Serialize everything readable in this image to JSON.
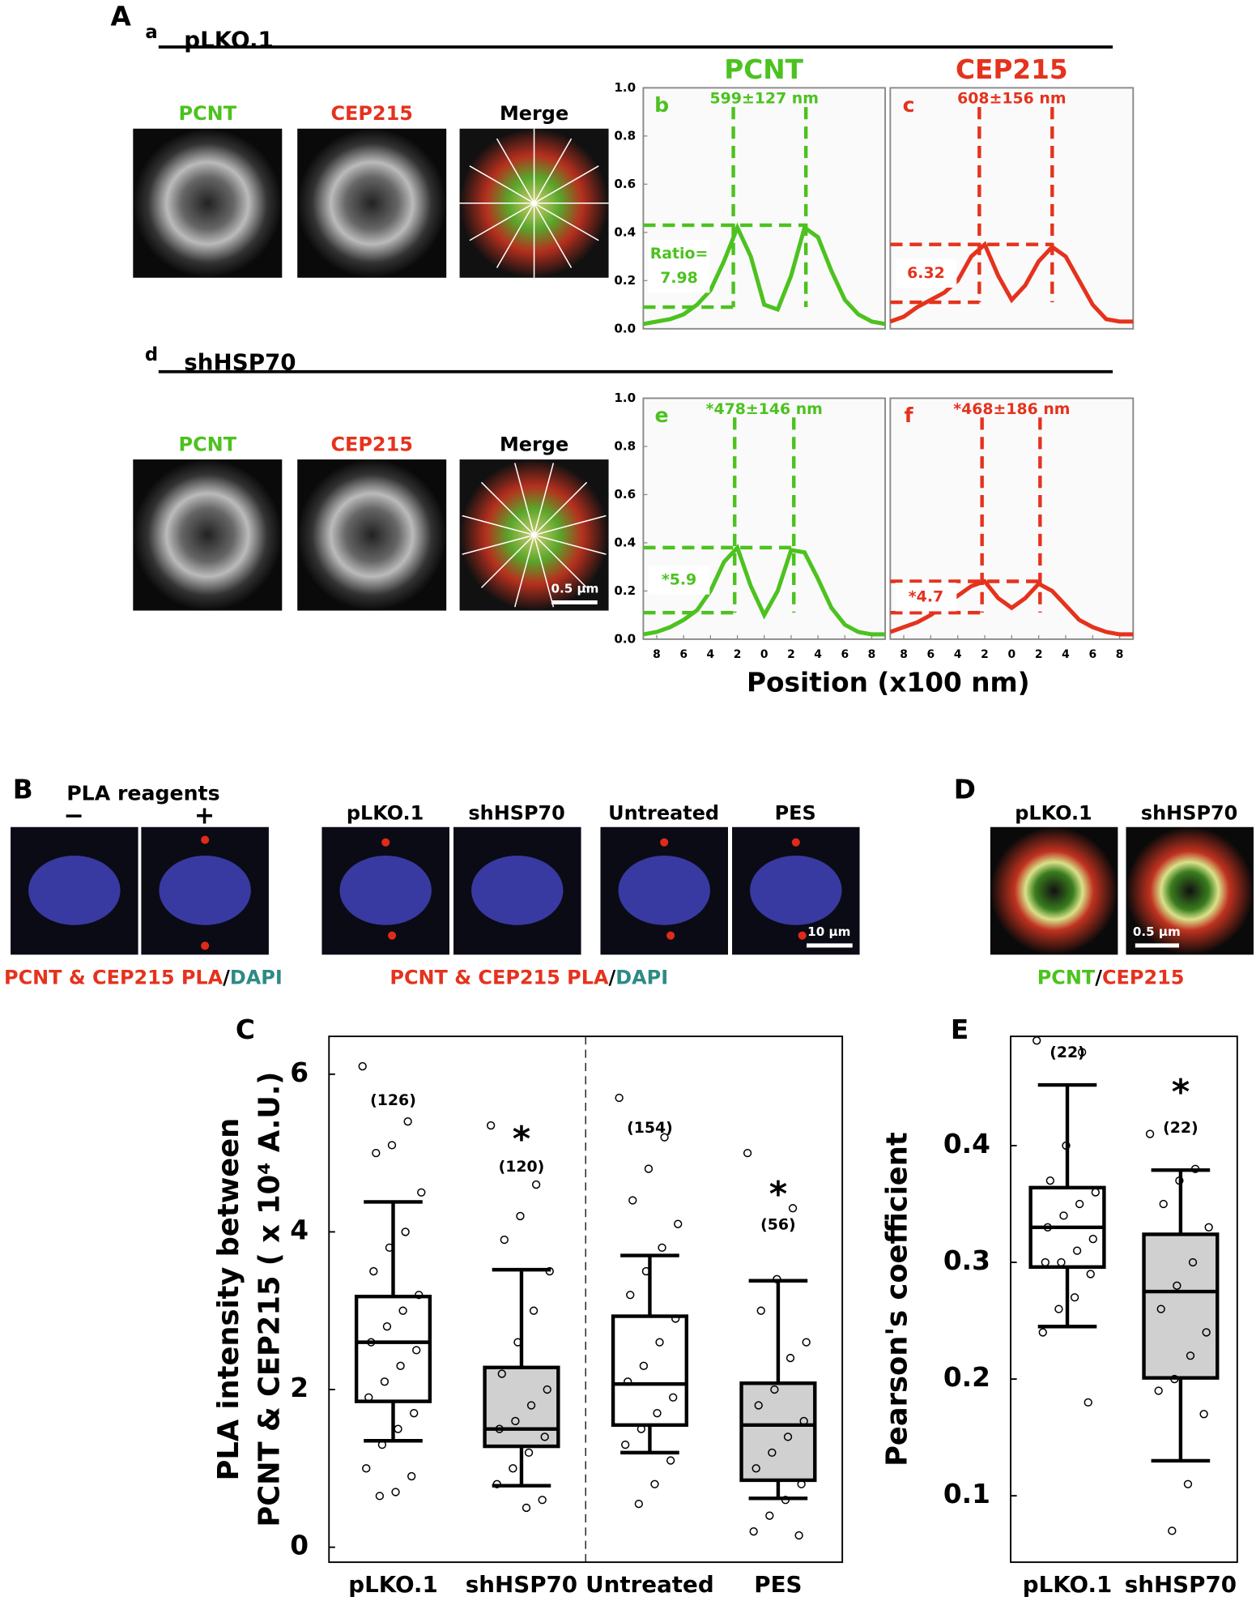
{
  "panel_a": {
    "letter": "A",
    "rows": [
      {
        "letter": "a",
        "title": "pLKO.1"
      },
      {
        "letter": "d",
        "title": "shHSP70"
      }
    ],
    "channels": [
      "PCNT",
      "CEP215",
      "Merge"
    ],
    "scale_bar": "0.5 μm",
    "column_titles": [
      "PCNT",
      "CEP215"
    ],
    "x_label": "Position (x100 nm)"
  },
  "panel_b": {
    "letter": "B",
    "reagents": "PLA reagents",
    "conditions": [
      "−",
      "+"
    ],
    "groups": [
      "pLKO.1",
      "shHSP70",
      "Untreated",
      "PES"
    ],
    "scale_bar": "10 μm",
    "caption": [
      "PCNT & CEP215 PLA",
      "/",
      "DAPI"
    ]
  },
  "panel_d": {
    "letter": "D",
    "groups": [
      "pLKO.1",
      "shHSP70"
    ],
    "scale_bar": "0.5 μm",
    "caption": [
      "PCNT",
      "/",
      "CEP215"
    ]
  },
  "chart_data": [
    {
      "type": "line",
      "letter": "b",
      "annotation": "599±127 nm",
      "ratio_text": [
        "Ratio=",
        "7.98"
      ],
      "color": "#4cc21f",
      "x": [
        -9,
        -8,
        -7,
        -6,
        -5,
        -4,
        -3,
        -2,
        -1,
        0,
        1,
        2,
        3,
        4,
        5,
        6,
        7,
        8,
        9
      ],
      "values": [
        0.02,
        0.03,
        0.04,
        0.06,
        0.1,
        0.16,
        0.28,
        0.42,
        0.3,
        0.1,
        0.08,
        0.22,
        0.42,
        0.38,
        0.24,
        0.12,
        0.06,
        0.03,
        0.02
      ],
      "hlines": [
        0.43,
        0.09
      ],
      "vlines": [
        -2.3,
        3.1
      ],
      "xlim": [
        -9,
        9
      ],
      "ylim": [
        0,
        1
      ],
      "yticks": [
        {
          "value": 0,
          "label": "0.0"
        },
        0.2,
        0.4,
        0.6,
        0.8,
        {
          "value": 1,
          "label": "1.0"
        }
      ]
    },
    {
      "type": "line",
      "letter": "c",
      "annotation": "608±156 nm",
      "ratio_text": [
        "6.32"
      ],
      "color": "#e5321d",
      "x": [
        -9,
        -8,
        -7,
        -6,
        -5,
        -4,
        -3,
        -2,
        -1,
        0,
        1,
        2,
        3,
        4,
        5,
        6,
        7,
        8,
        9
      ],
      "values": [
        0.03,
        0.05,
        0.09,
        0.12,
        0.15,
        0.2,
        0.3,
        0.35,
        0.22,
        0.12,
        0.18,
        0.28,
        0.34,
        0.3,
        0.2,
        0.1,
        0.04,
        0.03,
        0.03
      ],
      "hlines": [
        0.35,
        0.11
      ],
      "vlines": [
        -2.4,
        3.0
      ],
      "xlim": [
        -9,
        9
      ],
      "ylim": [
        0,
        1
      ]
    },
    {
      "type": "line",
      "letter": "e",
      "annotation": "*478±146 nm",
      "ratio_text": [
        "*5.9"
      ],
      "color": "#4cc21f",
      "x": [
        -9,
        -8,
        -7,
        -6,
        -5,
        -4,
        -3,
        -2,
        -1,
        0,
        1,
        2,
        3,
        4,
        5,
        6,
        7,
        8,
        9
      ],
      "values": [
        0.02,
        0.03,
        0.05,
        0.08,
        0.12,
        0.2,
        0.32,
        0.38,
        0.22,
        0.1,
        0.2,
        0.37,
        0.36,
        0.25,
        0.13,
        0.06,
        0.03,
        0.02,
        0.02
      ],
      "hlines": [
        0.38,
        0.11
      ],
      "vlines": [
        -2.2,
        2.2
      ],
      "xlim": [
        -9,
        9
      ],
      "ylim": [
        0,
        1
      ],
      "yticks": [
        {
          "value": 0,
          "label": "0.0"
        },
        0.2,
        0.4,
        0.6,
        0.8,
        {
          "value": 1,
          "label": "1.0"
        }
      ],
      "xticks": [
        {
          "value": -8,
          "label": "8"
        },
        {
          "value": -6,
          "label": "6"
        },
        {
          "value": -4,
          "label": "4"
        },
        {
          "value": -2,
          "label": "2"
        },
        0,
        2,
        4,
        6,
        8
      ]
    },
    {
      "type": "line",
      "letter": "f",
      "annotation": "*468±186 nm",
      "ratio_text": [
        "*4.7"
      ],
      "color": "#e5321d",
      "x": [
        -9,
        -8,
        -7,
        -6,
        -5,
        -4,
        -3,
        -2,
        -1,
        0,
        1,
        2,
        3,
        4,
        5,
        6,
        7,
        8,
        9
      ],
      "values": [
        0.03,
        0.05,
        0.07,
        0.1,
        0.14,
        0.18,
        0.22,
        0.24,
        0.17,
        0.13,
        0.17,
        0.23,
        0.2,
        0.14,
        0.08,
        0.05,
        0.03,
        0.02,
        0.02
      ],
      "hlines": [
        0.24,
        0.11
      ],
      "vlines": [
        -2.2,
        2.1
      ],
      "xlim": [
        -9,
        9
      ],
      "ylim": [
        0,
        1
      ],
      "xticks": [
        {
          "value": -8,
          "label": "8"
        },
        {
          "value": -6,
          "label": "6"
        },
        {
          "value": -4,
          "label": "4"
        },
        {
          "value": -2,
          "label": "2"
        },
        0,
        2,
        4,
        6,
        8
      ]
    },
    {
      "type": "box",
      "letter": "C",
      "y_label": [
        "PLA intensity between",
        "PCNT & CEP215 ( x 10⁴ A.U.)"
      ],
      "categories": [
        "pLKO.1",
        "shHSP70",
        "Untreated",
        "PES"
      ],
      "divider": true,
      "ylim": [
        -0.19,
        6.48
      ],
      "yticks": [
        0,
        2,
        4,
        6
      ],
      "box_colors": [
        "#ffffff",
        "#d0d0d0",
        "#ffffff",
        "#d0d0d0"
      ],
      "boxes": [
        {
          "min": 1.35,
          "q1": 1.85,
          "median": 2.6,
          "q3": 3.18,
          "max": 4.38,
          "n_label": "(126)",
          "points": [
            6.1,
            5.4,
            5.1,
            5.0,
            4.5,
            4.0,
            3.8,
            3.5,
            3.2,
            3.0,
            2.8,
            2.6,
            2.5,
            2.3,
            2.1,
            1.9,
            1.7,
            1.5,
            1.3,
            1.0,
            0.9,
            0.7,
            0.65
          ]
        },
        {
          "min": 0.78,
          "q1": 1.28,
          "median": 1.5,
          "q3": 2.28,
          "max": 3.52,
          "n_label": "(120)",
          "star": "*",
          "points": [
            5.35,
            4.6,
            4.2,
            3.9,
            3.5,
            3.0,
            2.6,
            2.2,
            2.0,
            1.8,
            1.6,
            1.5,
            1.4,
            1.2,
            1.0,
            0.8,
            0.6,
            0.5
          ]
        },
        {
          "min": 1.2,
          "q1": 1.55,
          "median": 2.07,
          "q3": 2.93,
          "max": 3.7,
          "n_label": "(154)",
          "points": [
            5.7,
            5.2,
            4.8,
            4.4,
            4.1,
            3.8,
            3.5,
            3.2,
            2.9,
            2.6,
            2.3,
            2.1,
            1.9,
            1.7,
            1.5,
            1.3,
            1.1,
            0.8,
            0.55
          ]
        },
        {
          "min": 0.62,
          "q1": 0.85,
          "median": 1.55,
          "q3": 2.08,
          "max": 3.38,
          "n_label": "(56)",
          "star": "*",
          "points": [
            5.0,
            4.3,
            3.4,
            3.0,
            2.6,
            2.4,
            2.0,
            1.8,
            1.6,
            1.4,
            1.2,
            1.0,
            0.8,
            0.6,
            0.4,
            0.2,
            0.15
          ]
        }
      ]
    },
    {
      "type": "box",
      "letter": "E",
      "y_label": [
        "Pearson's coefficient"
      ],
      "categories": [
        "pLKO.1",
        "shHSP70"
      ],
      "ylim": [
        0.0431,
        0.4936
      ],
      "yticks": [
        0.1,
        0.2,
        0.3,
        0.4
      ],
      "box_colors": [
        "#ffffff",
        "#d0d0d0"
      ],
      "boxes": [
        {
          "min": 0.245,
          "q1": 0.296,
          "median": 0.33,
          "q3": 0.364,
          "max": 0.452,
          "n_label": "(22)",
          "points": [
            0.49,
            0.48,
            0.4,
            0.37,
            0.36,
            0.35,
            0.34,
            0.33,
            0.32,
            0.31,
            0.3,
            0.3,
            0.29,
            0.27,
            0.26,
            0.24,
            0.18
          ]
        },
        {
          "min": 0.13,
          "q1": 0.201,
          "median": 0.275,
          "q3": 0.324,
          "max": 0.379,
          "n_label": "(22)",
          "star": "*",
          "points": [
            0.41,
            0.38,
            0.37,
            0.35,
            0.33,
            0.3,
            0.28,
            0.26,
            0.24,
            0.22,
            0.2,
            0.19,
            0.17,
            0.11,
            0.07
          ]
        }
      ]
    }
  ]
}
